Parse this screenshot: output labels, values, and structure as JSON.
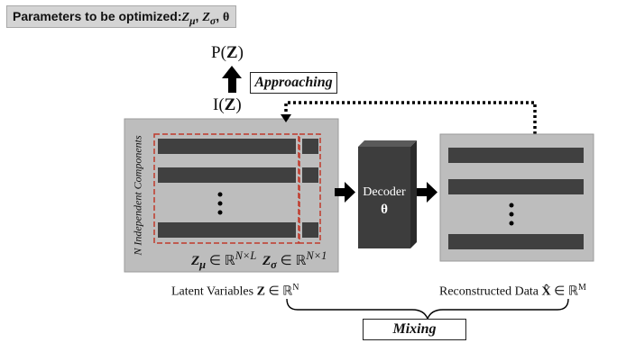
{
  "header": {
    "prefix": "Parameters to be optimized:",
    "z_mu": "Z",
    "mu": "μ",
    "sep1": ", ",
    "z_sigma": "Z",
    "sigma": "σ",
    "sep2": ", ",
    "theta": "θ"
  },
  "top": {
    "p_prefix": "P(",
    "p_var": "Z",
    "p_suffix": ")",
    "approaching": "Approaching",
    "i_prefix": "I(",
    "i_var": "Z",
    "i_suffix": ")"
  },
  "latent": {
    "side_label": "N Independent Components",
    "dots": "⋮",
    "zmu_var": "Z",
    "zmu_sub": "μ",
    "zmu_in": " ∈ ℝ",
    "zmu_sup": "N×L",
    "zsigma_var": "Z",
    "zsigma_sub": "σ",
    "zsigma_in": " ∈ ℝ",
    "zsigma_sup": "N×1",
    "caption_text": "Latent Variables ",
    "caption_var": "Z",
    "caption_in": " ∈ ℝ",
    "caption_sup": "N"
  },
  "decoder": {
    "label": "Decoder",
    "theta": "θ"
  },
  "recon": {
    "dots": "⋮",
    "caption_text": "Reconstructed Data ",
    "caption_var": "X̂",
    "caption_in": " ∈ ℝ",
    "caption_sup": "M"
  },
  "mixing": {
    "label": "Mixing"
  },
  "colors": {
    "panel_gray": "#bdbdbd",
    "bar_dark": "#404040",
    "dashed_red": "#c0392b",
    "decoder_face": "#3d3d3d",
    "header_gray": "#d4d4d4"
  }
}
